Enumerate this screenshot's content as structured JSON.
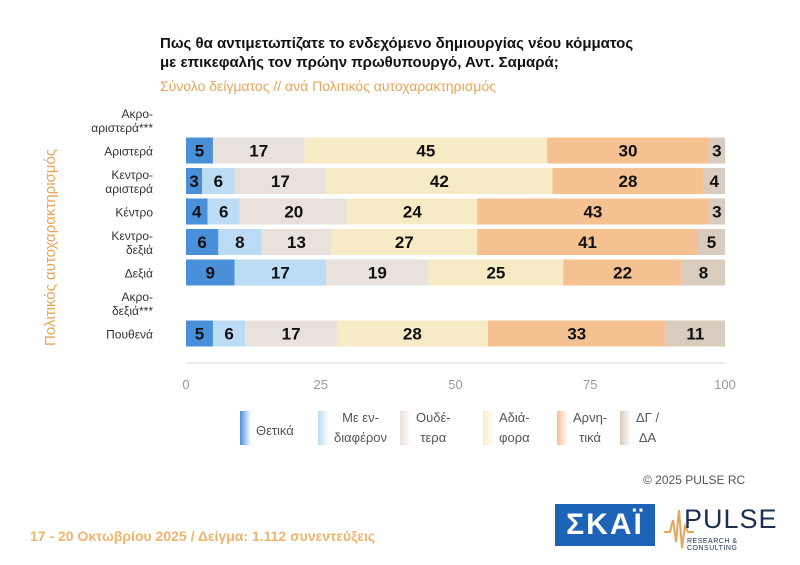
{
  "title_line1": "Πως θα αντιμετωπίζατε το ενδεχόμενο δημιουργίας νέου κόμματος",
  "title_line2": "με επικεφαλής τον πρώην πρωθυπουργό, Αντ. Σαμαρά;",
  "subtitle": "Σύνολο δείγματος // ανά Πολιτικός αυτοχαρακτηρισμός",
  "copyright": "© 2025 PULSE RC",
  "footer": "17 - 20 Οκτωβρίου 2025  /  Δείγμα:  1.112 συνεντεύξεις",
  "logos": {
    "skai": "ΣΚΑΪ",
    "pulse": "PULSE",
    "pulse_sub": "RESEARCH & CONSULTING"
  },
  "chart_data": {
    "type": "bar",
    "orientation": "horizontal",
    "stacked": true,
    "ylabel": "Πολιτικός αυτοχαρακτηρισμός",
    "xlim": [
      0,
      100
    ],
    "xticks": [
      0,
      25,
      50,
      75,
      100
    ],
    "categories": [
      {
        "label": [
          "Ακρο-",
          "αριστερά***"
        ]
      },
      {
        "label": [
          "Αριστερά"
        ]
      },
      {
        "label": [
          "Κεντρο-",
          "αριστερά"
        ]
      },
      {
        "label": [
          "Κέντρο"
        ]
      },
      {
        "label": [
          "Κεντρο-",
          "δεξιά"
        ]
      },
      {
        "label": [
          "Δεξιά"
        ]
      },
      {
        "label": [
          "Ακρο-",
          "δεξιά***"
        ]
      },
      {
        "label": [
          "Πουθενά"
        ]
      }
    ],
    "series": [
      {
        "name": "Θετικά",
        "legend": [
          "Θετικά"
        ],
        "color": "#4a90d9",
        "values": [
          null,
          5,
          3,
          4,
          6,
          9,
          null,
          5
        ]
      },
      {
        "name": "Με ενδιαφέρον",
        "legend": [
          "Με εν-",
          "διαφέρον"
        ],
        "color": "#bcdcf5",
        "values": [
          null,
          0,
          6,
          6,
          8,
          17,
          null,
          6
        ]
      },
      {
        "name": "Ουδέτερα",
        "legend": [
          "Ουδέ-",
          "τερα"
        ],
        "color": "#e9e1dc",
        "values": [
          null,
          17,
          17,
          20,
          13,
          19,
          null,
          17
        ]
      },
      {
        "name": "Αδιάφορα",
        "legend": [
          "Αδιά-",
          "φορα"
        ],
        "color": "#f7ebc5",
        "values": [
          null,
          45,
          42,
          24,
          27,
          25,
          null,
          28
        ]
      },
      {
        "name": "Αρνητικά",
        "legend": [
          "Αρνη-",
          "τικά"
        ],
        "color": "#f5c191",
        "values": [
          null,
          30,
          28,
          43,
          41,
          22,
          null,
          33
        ]
      },
      {
        "name": "ΔΓ / ΔΑ",
        "legend": [
          "ΔΓ /",
          "ΔΑ"
        ],
        "color": "#d9cbbd",
        "values": [
          null,
          3,
          4,
          3,
          5,
          8,
          null,
          11
        ]
      }
    ],
    "grid": false,
    "legend_position": "bottom"
  }
}
